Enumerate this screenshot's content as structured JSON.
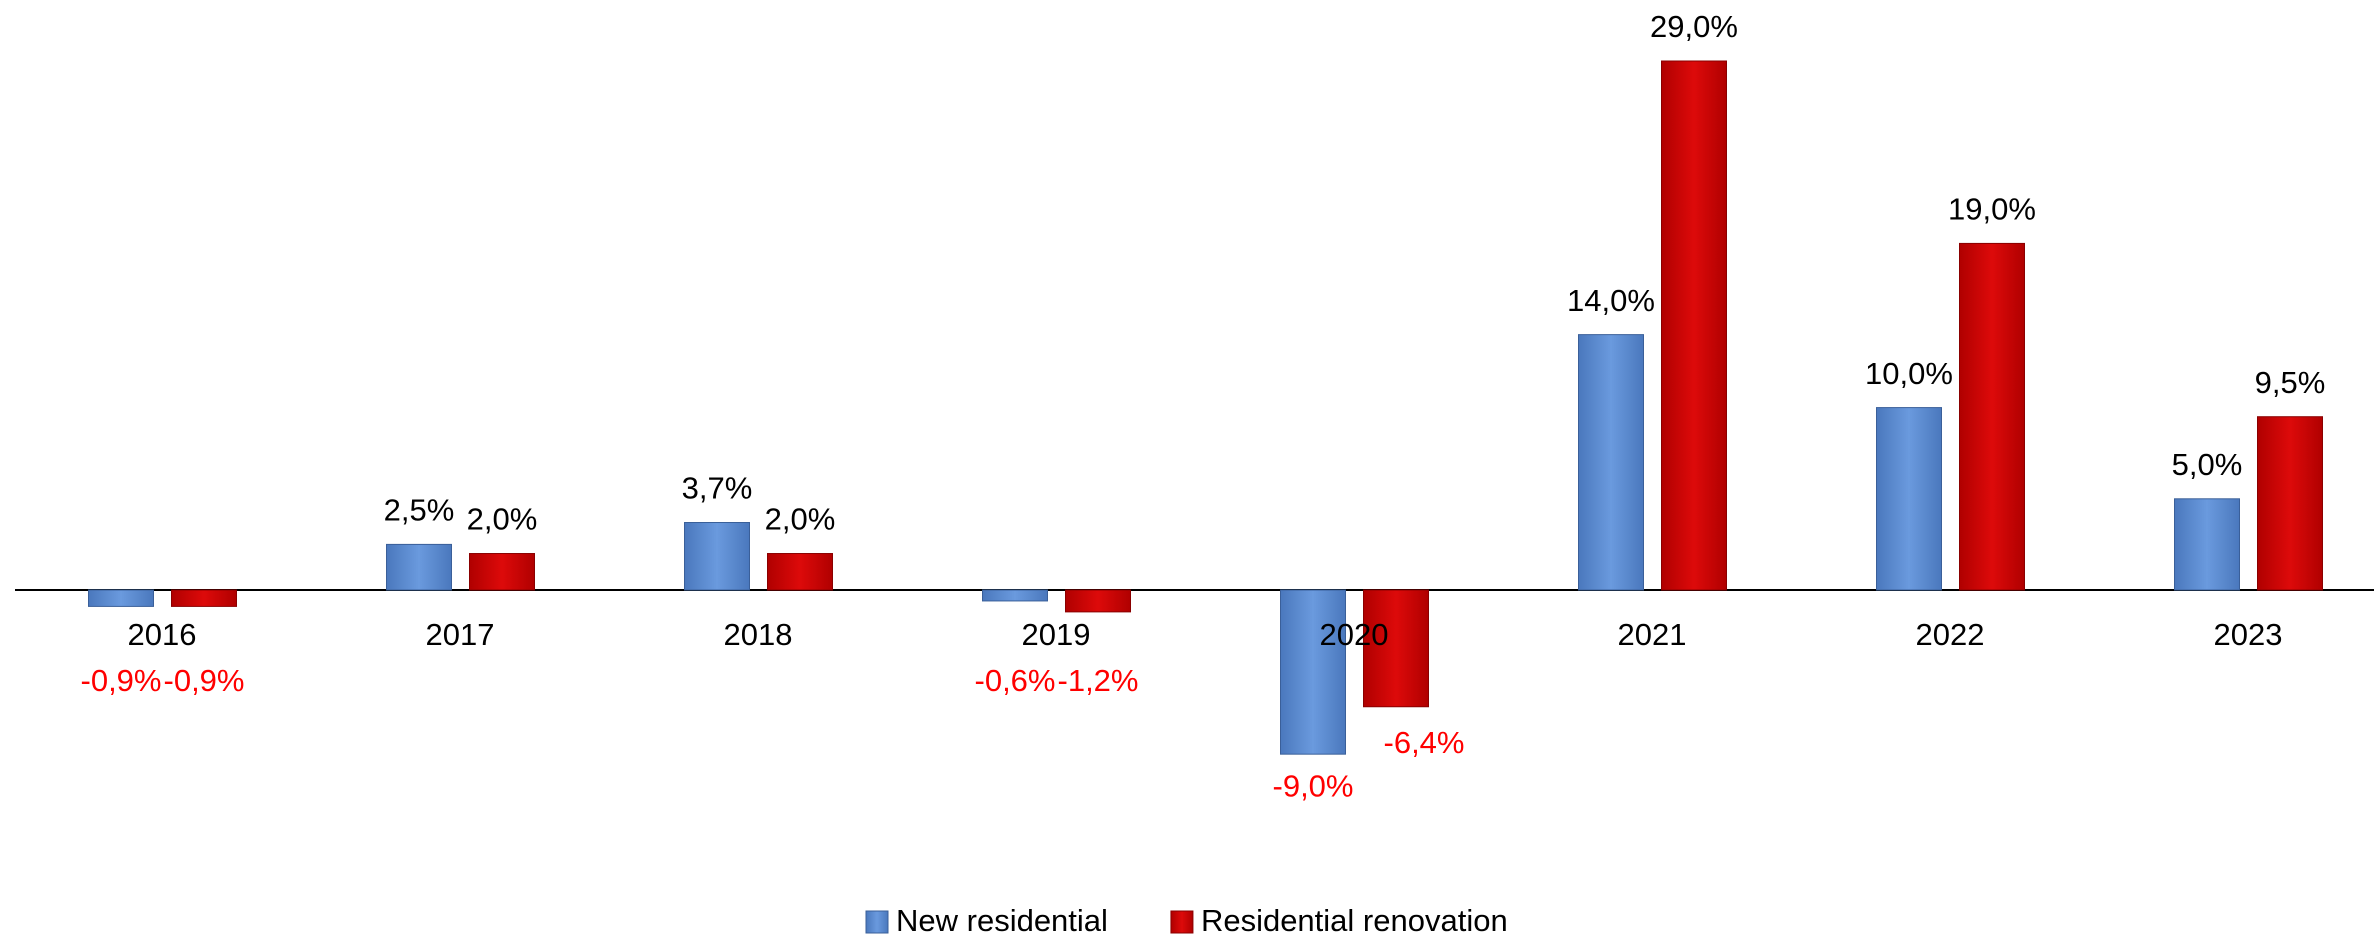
{
  "chart_data": {
    "type": "bar",
    "categories": [
      "2016",
      "2017",
      "2018",
      "2019",
      "2020",
      "2021",
      "2022",
      "2023"
    ],
    "series": [
      {
        "name": "New residential",
        "color": "#5b8bd0",
        "values": [
          -0.9,
          2.5,
          3.7,
          -0.6,
          -9.0,
          14.0,
          10.0,
          5.0
        ],
        "value_labels": [
          "-0,9%",
          "2,5%",
          "3,7%",
          "-0,6%",
          "-9,0%",
          "14,0%",
          "10,0%",
          "5,0%"
        ]
      },
      {
        "name": "Residential renovation",
        "color": "#cc0000",
        "values": [
          -0.9,
          2.0,
          2.0,
          -1.2,
          -6.4,
          29.0,
          19.0,
          9.5
        ],
        "value_labels": [
          "-0,9%",
          "2,0%",
          "2,0%",
          "-1,2%",
          "-6,4%",
          "29,0%",
          "19,0%",
          "9,5%"
        ]
      }
    ],
    "label_color": "#000000",
    "negative_label_color": "#ff0000",
    "legend": "bottom"
  }
}
